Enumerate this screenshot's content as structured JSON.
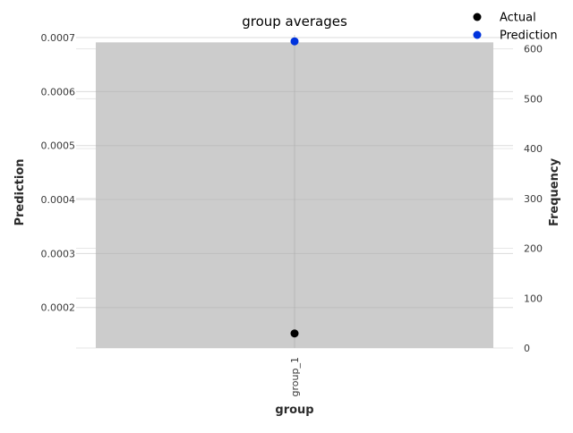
{
  "chart_data": {
    "type": "scatter",
    "title": "group averages",
    "xlabel": "group",
    "ylabel_left": "Prediction",
    "ylabel_right": "Frequency",
    "categories": [
      "group_1"
    ],
    "frequency": [
      613
    ],
    "series": [
      {
        "name": "Actual",
        "color": "#000000",
        "values": [
          0.000152
        ]
      },
      {
        "name": "Prediction",
        "color": "#0033dd",
        "values": [
          0.000693
        ]
      }
    ],
    "ylim_left": [
      0.000125,
      0.000705
    ],
    "yticks_left": [
      0.0002,
      0.0003,
      0.0004,
      0.0005,
      0.0006,
      0.0007
    ],
    "ylim_right": [
      0,
      628
    ],
    "yticks_right": [
      0,
      100,
      200,
      300,
      400,
      500,
      600
    ],
    "bar_color": "#cccccc",
    "grid": true,
    "legend_position": "top-right"
  }
}
